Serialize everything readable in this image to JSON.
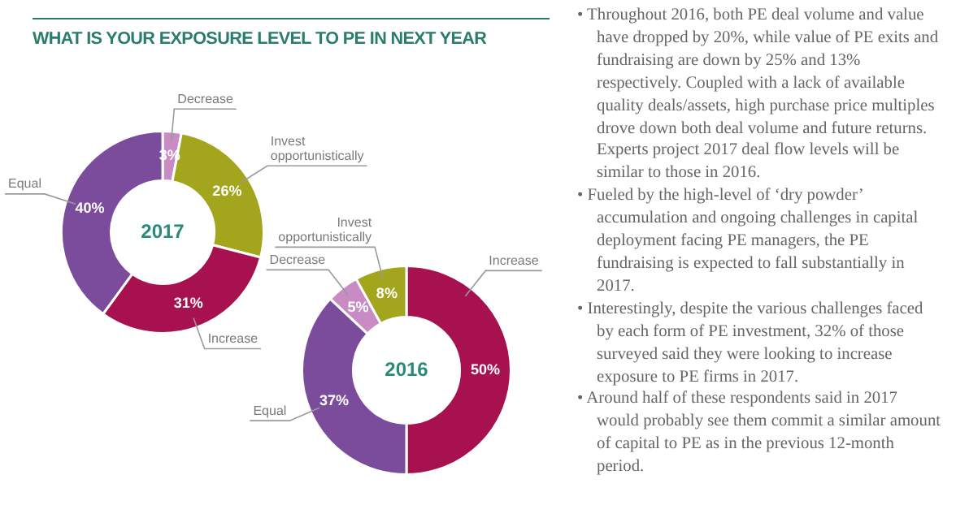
{
  "chart_data": [
    {
      "type": "donut",
      "title": "WHAT IS YOUR EXPOSURE LEVEL TO PE IN NEXT YEAR",
      "categories": [
        "Decrease",
        "Invest opportunistically",
        "Increase",
        "Equal"
      ],
      "values": [
        3,
        26,
        31,
        40
      ],
      "value_labels": [
        "3%",
        "26%",
        "31%",
        "40%"
      ],
      "colors": [
        "#c98bc4",
        "#a3a51c",
        "#a8114f",
        "#7b4c9c"
      ],
      "annotations": [
        "2017"
      ]
    },
    {
      "type": "donut",
      "categories": [
        "Increase",
        "Equal",
        "Decrease",
        "Invest opportunistically"
      ],
      "values": [
        50,
        37,
        5,
        8
      ],
      "value_labels": [
        "50%",
        "37%",
        "5%",
        "8%"
      ],
      "colors": [
        "#a8114f",
        "#7b4c9c",
        "#c98bc4",
        "#a3a51c"
      ],
      "annotations": [
        "2016"
      ]
    },
    {
      "type": "other",
      "annotations": [
        "• Throughout 2016, both PE deal volume and value have dropped by 20%, while value of PE exits and fundraising are down by 25% and 13% respectively. Coupled with a lack of available quality deals/assets, high purchase price multiples drove down both deal volume and future returns. Experts project 2017 deal flow levels will be similar to those in 2016.",
        "• Fueled by the high-level of ‘dry powder’ accumulation and ongoing challenges in capital deployment facing PE managers, the PE fundraising is expected to fall substantially in 2017.",
        "• Interestingly, despite the various challenges faced by each form of PE investment, 32% of those surveyed said they were looking to increase exposure to PE firms in 2017.",
        "• Around half of these respondents said in 2017 would probably see them commit a similar amount of capital to PE as in the previous 12-month period."
      ]
    }
  ]
}
